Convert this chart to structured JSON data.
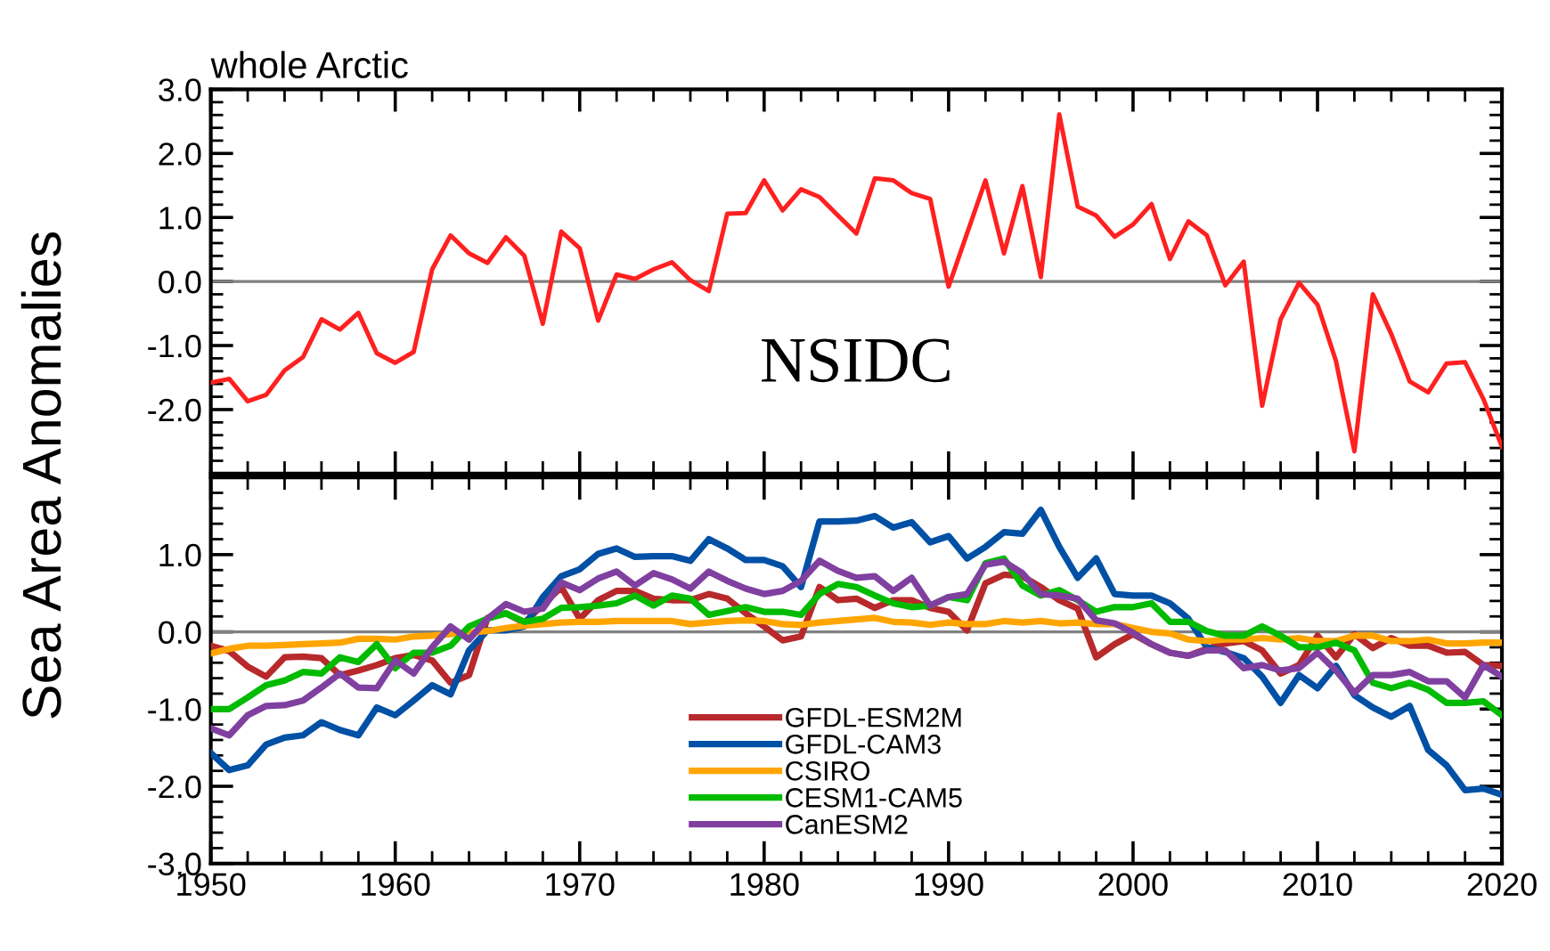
{
  "chart_data": [
    {
      "type": "line",
      "title": "whole Arctic",
      "ylabel": "Sea Area Anomalies",
      "annotations": [
        "NSIDC"
      ],
      "x": [
        1950,
        1951,
        1952,
        1953,
        1954,
        1955,
        1956,
        1957,
        1958,
        1959,
        1960,
        1961,
        1962,
        1963,
        1964,
        1965,
        1966,
        1967,
        1968,
        1969,
        1970,
        1971,
        1972,
        1973,
        1974,
        1975,
        1976,
        1977,
        1978,
        1979,
        1980,
        1981,
        1982,
        1983,
        1984,
        1985,
        1986,
        1987,
        1988,
        1989,
        1990,
        1991,
        1992,
        1993,
        1994,
        1995,
        1996,
        1997,
        1998,
        1999,
        2000,
        2001,
        2002,
        2003,
        2004,
        2005,
        2006,
        2007,
        2008,
        2009,
        2010,
        2011,
        2012,
        2013,
        2014,
        2015,
        2016,
        2017,
        2018,
        2019,
        2020
      ],
      "series": [
        {
          "color": "#ff2020",
          "values": [
            -1.58,
            -1.52,
            -1.87,
            -1.77,
            -1.39,
            -1.18,
            -0.59,
            -0.75,
            -0.49,
            -1.12,
            -1.27,
            -1.1,
            0.19,
            0.72,
            0.44,
            0.29,
            0.69,
            0.4,
            -0.66,
            0.78,
            0.52,
            -0.61,
            0.11,
            0.04,
            0.19,
            0.3,
            0.02,
            -0.15,
            1.06,
            1.07,
            1.58,
            1.11,
            1.44,
            1.32,
            1.03,
            0.75,
            1.61,
            1.58,
            1.38,
            1.29,
            -0.08,
            0.75,
            1.58,
            0.44,
            1.49,
            0.07,
            2.61,
            1.17,
            1.03,
            0.7,
            0.89,
            1.21,
            0.35,
            0.94,
            0.72,
            -0.06,
            0.31,
            -1.94,
            -0.59,
            -0.02,
            -0.36,
            -1.24,
            -2.65,
            -0.2,
            -0.82,
            -1.56,
            -1.73,
            -1.28,
            -1.26,
            -1.84,
            -2.58
          ]
        }
      ],
      "xlim": [
        1950,
        2020
      ],
      "xticks": [
        1950,
        1960,
        1970,
        1980,
        1990,
        2000,
        2010,
        2020
      ],
      "ylim": [
        -3,
        3
      ],
      "yticks": [
        {
          "value": -2,
          "label": "-2.0"
        },
        {
          "value": -1,
          "label": "-1.0"
        },
        {
          "value": 0,
          "label": "0.0"
        },
        {
          "value": 1,
          "label": "1.0"
        },
        {
          "value": 2,
          "label": "2.0"
        },
        {
          "value": 3,
          "label": "3.0"
        }
      ],
      "tick_labels": "y",
      "ref_lines": [
        {
          "axis": "y",
          "value": 0,
          "color": "#808080"
        }
      ],
      "grid": false,
      "legend": false
    },
    {
      "type": "line",
      "x": [
        1950,
        1951,
        1952,
        1953,
        1954,
        1955,
        1956,
        1957,
        1958,
        1959,
        1960,
        1961,
        1962,
        1963,
        1964,
        1965,
        1966,
        1967,
        1968,
        1969,
        1970,
        1971,
        1972,
        1973,
        1974,
        1975,
        1976,
        1977,
        1978,
        1979,
        1980,
        1981,
        1982,
        1983,
        1984,
        1985,
        1986,
        1987,
        1988,
        1989,
        1990,
        1991,
        1992,
        1993,
        1994,
        1995,
        1996,
        1997,
        1998,
        1999,
        2000,
        2001,
        2002,
        2003,
        2004,
        2005,
        2006,
        2007,
        2008,
        2009,
        2010,
        2011,
        2012,
        2013,
        2014,
        2015,
        2016,
        2017,
        2018,
        2019,
        2020
      ],
      "series": [
        {
          "name": "GFDL-ESM2M",
          "color": "#b8292b",
          "values": [
            -0.18,
            -0.25,
            -0.45,
            -0.58,
            -0.33,
            -0.32,
            -0.34,
            -0.56,
            -0.5,
            -0.43,
            -0.34,
            -0.3,
            -0.37,
            -0.66,
            -0.56,
            0.18,
            0.24,
            0.12,
            0.35,
            0.58,
            0.17,
            0.41,
            0.53,
            0.53,
            0.43,
            0.41,
            0.41,
            0.49,
            0.43,
            0.24,
            0.07,
            -0.11,
            -0.06,
            0.58,
            0.41,
            0.43,
            0.31,
            0.41,
            0.41,
            0.31,
            0.26,
            0.02,
            0.63,
            0.74,
            0.72,
            0.58,
            0.41,
            0.3,
            -0.33,
            -0.16,
            -0.03,
            -0.16,
            -0.27,
            -0.31,
            -0.22,
            -0.15,
            -0.12,
            -0.24,
            -0.54,
            -0.43,
            -0.05,
            -0.33,
            -0.03,
            -0.21,
            -0.08,
            -0.18,
            -0.18,
            -0.27,
            -0.26,
            -0.43,
            -0.44
          ]
        },
        {
          "name": "GFDL-CAM3",
          "color": "#0050a5",
          "values": [
            -1.57,
            -1.79,
            -1.73,
            -1.46,
            -1.37,
            -1.34,
            -1.17,
            -1.27,
            -1.34,
            -0.98,
            -1.08,
            -0.89,
            -0.69,
            -0.81,
            -0.24,
            0.02,
            0.02,
            0.07,
            0.45,
            0.72,
            0.81,
            1.01,
            1.08,
            0.97,
            0.98,
            0.98,
            0.92,
            1.2,
            1.08,
            0.93,
            0.93,
            0.85,
            0.58,
            1.43,
            1.43,
            1.44,
            1.5,
            1.35,
            1.42,
            1.16,
            1.24,
            0.95,
            1.1,
            1.29,
            1.27,
            1.58,
            1.1,
            0.7,
            0.95,
            0.49,
            0.47,
            0.47,
            0.37,
            0.17,
            -0.2,
            -0.26,
            -0.34,
            -0.58,
            -0.92,
            -0.56,
            -0.73,
            -0.44,
            -0.82,
            -0.98,
            -1.1,
            -0.96,
            -1.53,
            -1.73,
            -2.05,
            -2.03,
            -2.11
          ]
        },
        {
          "name": "CSIRO",
          "color": "#ffa500",
          "values": [
            -0.28,
            -0.22,
            -0.18,
            -0.18,
            -0.17,
            -0.16,
            -0.15,
            -0.14,
            -0.09,
            -0.09,
            -0.1,
            -0.06,
            -0.05,
            -0.03,
            -0.01,
            0.01,
            0.05,
            0.08,
            0.1,
            0.12,
            0.13,
            0.13,
            0.14,
            0.14,
            0.14,
            0.14,
            0.1,
            0.12,
            0.14,
            0.15,
            0.14,
            0.1,
            0.09,
            0.12,
            0.14,
            0.16,
            0.18,
            0.13,
            0.12,
            0.09,
            0.12,
            0.1,
            0.1,
            0.14,
            0.12,
            0.14,
            0.11,
            0.12,
            0.1,
            0.1,
            0.05,
            0.0,
            -0.02,
            -0.1,
            -0.12,
            -0.1,
            -0.1,
            -0.08,
            -0.1,
            -0.08,
            -0.12,
            -0.12,
            -0.05,
            -0.05,
            -0.12,
            -0.12,
            -0.1,
            -0.15,
            -0.15,
            -0.14,
            -0.14
          ]
        },
        {
          "name": "CESM1-CAM5",
          "color": "#00bb00",
          "values": [
            -1.0,
            -1.0,
            -0.85,
            -0.69,
            -0.63,
            -0.52,
            -0.54,
            -0.33,
            -0.39,
            -0.16,
            -0.47,
            -0.27,
            -0.27,
            -0.18,
            0.07,
            0.17,
            0.24,
            0.13,
            0.17,
            0.31,
            0.32,
            0.34,
            0.37,
            0.47,
            0.34,
            0.47,
            0.43,
            0.22,
            0.27,
            0.32,
            0.26,
            0.26,
            0.22,
            0.49,
            0.62,
            0.58,
            0.47,
            0.37,
            0.32,
            0.34,
            0.45,
            0.41,
            0.89,
            0.95,
            0.6,
            0.47,
            0.54,
            0.41,
            0.26,
            0.32,
            0.32,
            0.37,
            0.13,
            0.13,
            0.01,
            -0.05,
            -0.05,
            0.07,
            -0.05,
            -0.2,
            -0.2,
            -0.14,
            -0.24,
            -0.66,
            -0.73,
            -0.66,
            -0.75,
            -0.92,
            -0.92,
            -0.9,
            -1.08
          ]
        },
        {
          "name": "CanESM2",
          "color": "#8040a0",
          "values": [
            -1.25,
            -1.34,
            -1.08,
            -0.96,
            -0.95,
            -0.89,
            -0.72,
            -0.54,
            -0.72,
            -0.73,
            -0.37,
            -0.54,
            -0.2,
            0.07,
            -0.1,
            0.17,
            0.36,
            0.26,
            0.3,
            0.64,
            0.54,
            0.69,
            0.78,
            0.6,
            0.76,
            0.68,
            0.56,
            0.78,
            0.66,
            0.56,
            0.49,
            0.53,
            0.66,
            0.92,
            0.79,
            0.7,
            0.72,
            0.53,
            0.7,
            0.34,
            0.45,
            0.49,
            0.87,
            0.91,
            0.76,
            0.49,
            0.47,
            0.43,
            0.15,
            0.11,
            -0.01,
            -0.16,
            -0.27,
            -0.31,
            -0.24,
            -0.24,
            -0.47,
            -0.43,
            -0.5,
            -0.47,
            -0.27,
            -0.5,
            -0.79,
            -0.56,
            -0.56,
            -0.52,
            -0.64,
            -0.64,
            -0.85,
            -0.43,
            -0.58
          ]
        }
      ],
      "xlim": [
        1950,
        2020
      ],
      "xticks": [
        1950,
        1960,
        1970,
        1980,
        1990,
        2000,
        2010,
        2020
      ],
      "ylim": [
        -3,
        2
      ],
      "yticks": [
        {
          "value": -3,
          "label": "-3.0"
        },
        {
          "value": -2,
          "label": "-2.0"
        },
        {
          "value": -1,
          "label": "-1.0"
        },
        {
          "value": 0,
          "label": "0.0"
        },
        {
          "value": 1,
          "label": "1.0"
        }
      ],
      "ref_lines": [
        {
          "axis": "y",
          "value": 0,
          "color": "#808080"
        }
      ],
      "grid": false,
      "legend": "bottom"
    }
  ]
}
